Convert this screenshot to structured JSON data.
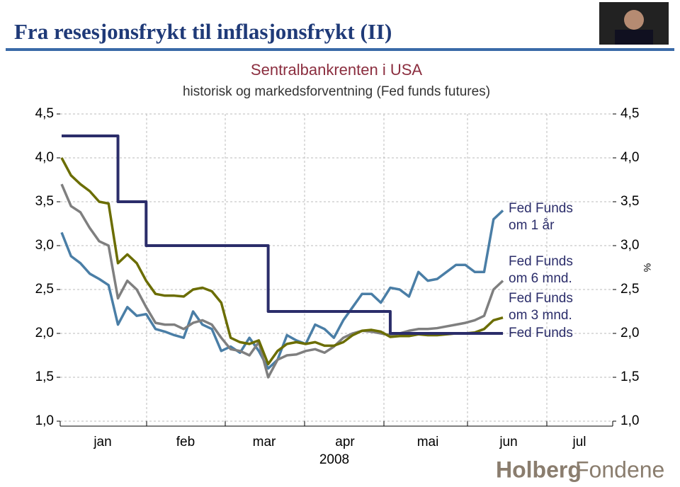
{
  "slide": {
    "title": "Fra resesjonsfrykt til inflasjonsfrykt (II)",
    "logo": [
      "Holberg",
      "Fondene"
    ]
  },
  "chart_data": {
    "type": "line",
    "title": "Sentralbankrenten i USA",
    "subtitle": "historisk og markedsforventning (Fed funds futures)",
    "y2_label": "%",
    "x_label": "2008",
    "months": [
      "jan",
      "feb",
      "mar",
      "apr",
      "mai",
      "jun",
      "jul"
    ],
    "ylim": [
      1,
      4.5
    ],
    "y2lim": [
      1,
      4.5
    ],
    "yticks": [
      {
        "value": 1,
        "label": "1,0"
      },
      {
        "value": 1.5,
        "label": "1,5"
      },
      {
        "value": 2,
        "label": "2,0"
      },
      {
        "value": 2.5,
        "label": "2,5"
      },
      {
        "value": 3,
        "label": "3,0"
      },
      {
        "value": 3.5,
        "label": "3,5"
      },
      {
        "value": 4,
        "label": "4,0"
      },
      {
        "value": 4.5,
        "label": "4,5"
      }
    ],
    "y2ticks": [
      {
        "value": 1,
        "label": "1,0"
      },
      {
        "value": 1.5,
        "label": "1,5"
      },
      {
        "value": 2,
        "label": "2,0"
      },
      {
        "value": 2.5,
        "label": "2,5"
      },
      {
        "value": 3,
        "label": "3,0"
      },
      {
        "value": 3.5,
        "label": "3,5"
      },
      {
        "value": 4,
        "label": "4,0"
      },
      {
        "value": 4.5,
        "label": "4,5"
      }
    ],
    "grid": true,
    "series": [
      {
        "name": "Fed Funds om 1 år",
        "color": "#4a7ea6",
        "values": [
          3.15,
          2.88,
          2.8,
          2.68,
          2.62,
          2.55,
          2.1,
          2.3,
          2.2,
          2.22,
          2.05,
          2.02,
          1.98,
          1.95,
          2.25,
          2.1,
          2.05,
          1.8,
          1.85,
          1.78,
          1.95,
          1.8,
          1.6,
          1.7,
          1.98,
          1.92,
          1.88,
          2.1,
          2.05,
          1.95,
          2.15,
          2.3,
          2.45,
          2.45,
          2.35,
          2.52,
          2.5,
          2.42,
          2.7,
          2.6,
          2.62,
          2.7,
          2.78,
          2.78,
          2.7,
          2.7,
          3.3,
          3.4
        ]
      },
      {
        "name": "Fed Funds om 6 mnd.",
        "color": "#7f7f7f",
        "values": [
          3.7,
          3.45,
          3.38,
          3.2,
          3.05,
          3.0,
          2.4,
          2.6,
          2.5,
          2.3,
          2.12,
          2.1,
          2.1,
          2.05,
          2.12,
          2.15,
          2.1,
          1.95,
          1.82,
          1.8,
          1.75,
          1.9,
          1.5,
          1.7,
          1.75,
          1.76,
          1.8,
          1.82,
          1.78,
          1.85,
          1.95,
          2.0,
          2.03,
          2.02,
          2.0,
          1.98,
          2.0,
          2.03,
          2.05,
          2.05,
          2.06,
          2.08,
          2.1,
          2.12,
          2.15,
          2.2,
          2.5,
          2.6
        ]
      },
      {
        "name": "Fed Funds om 3 mnd.",
        "color": "#6b6d00",
        "values": [
          4.0,
          3.8,
          3.7,
          3.62,
          3.5,
          3.48,
          2.8,
          2.9,
          2.8,
          2.6,
          2.45,
          2.43,
          2.43,
          2.42,
          2.5,
          2.52,
          2.48,
          2.35,
          1.95,
          1.9,
          1.88,
          1.92,
          1.65,
          1.8,
          1.88,
          1.9,
          1.88,
          1.9,
          1.86,
          1.86,
          1.9,
          1.98,
          2.03,
          2.04,
          2.02,
          1.96,
          1.97,
          1.97,
          1.99,
          1.98,
          1.98,
          1.99,
          2.0,
          2.0,
          2.01,
          2.05,
          2.15,
          2.18
        ]
      },
      {
        "name": "Fed Funds",
        "color": "#2b2d6a",
        "step": true,
        "values": [
          4.25,
          4.25,
          4.25,
          4.25,
          4.25,
          4.25,
          3.5,
          3.5,
          3.5,
          3.0,
          3.0,
          3.0,
          3.0,
          3.0,
          3.0,
          3.0,
          3.0,
          3.0,
          3.0,
          3.0,
          3.0,
          3.0,
          2.25,
          2.25,
          2.25,
          2.25,
          2.25,
          2.25,
          2.25,
          2.25,
          2.25,
          2.25,
          2.25,
          2.25,
          2.25,
          2.0,
          2.0,
          2.0,
          2.0,
          2.0,
          2.0,
          2.0,
          2.0,
          2.0,
          2.0,
          2.0,
          2.0,
          2.0
        ]
      }
    ]
  }
}
